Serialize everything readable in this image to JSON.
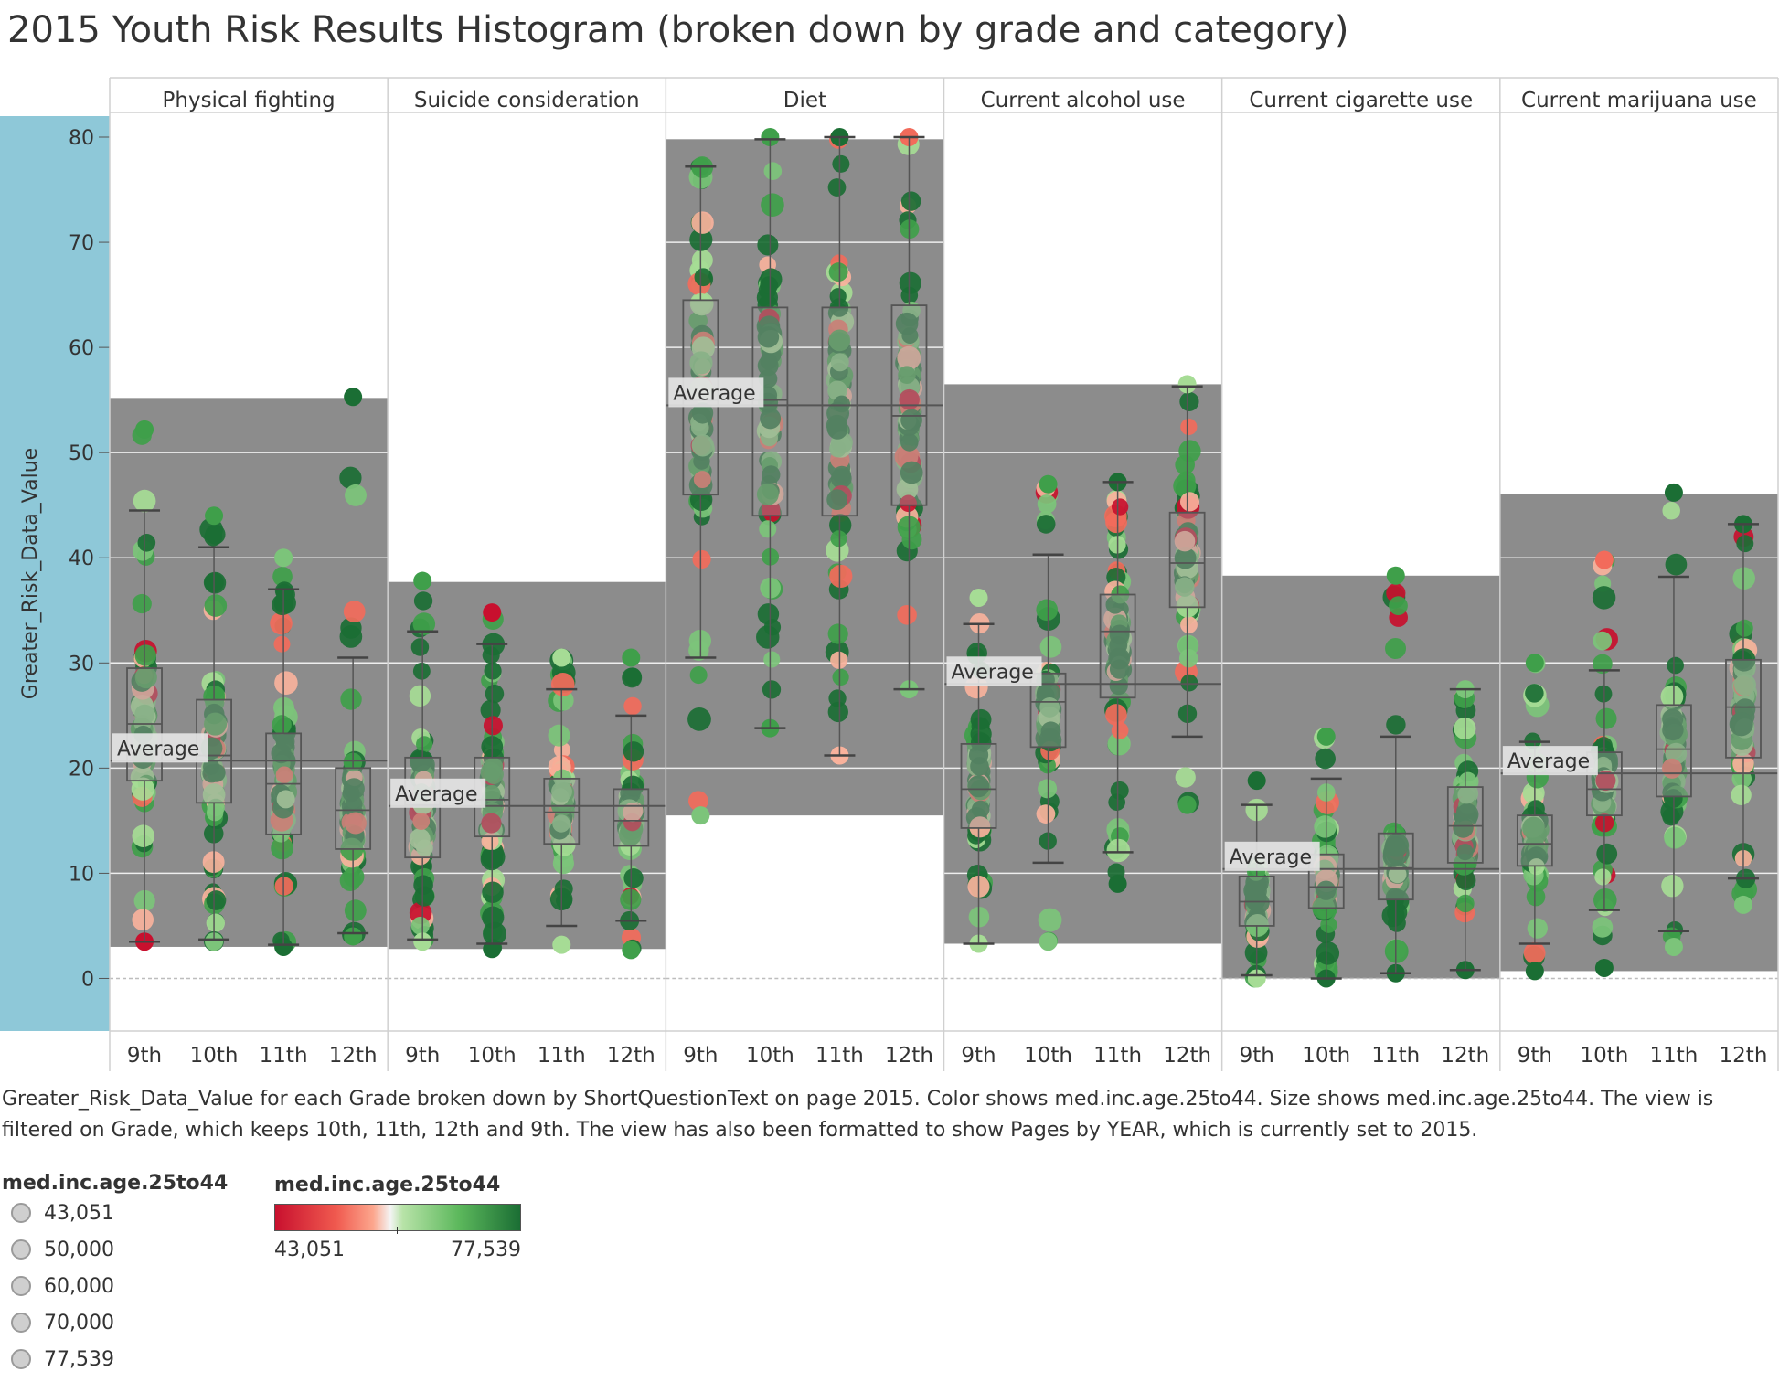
{
  "title": "2015 Youth Risk Results Histogram (broken down by grade and category)",
  "caption": "Greater_Risk_Data_Value for each Grade broken down by ShortQuestionText on page 2015.  Color shows med.inc.age.25to44.  Size shows med.inc.age.25to44. The view is filtered on Grade, which keeps 10th, 11th, 12th and 9th. The view has also been formatted to show Pages by YEAR, which is currently set to 2015.",
  "size_legend": {
    "title": "med.inc.age.25to44",
    "items": [
      "43,051",
      "50,000",
      "60,000",
      "70,000",
      "77,539"
    ]
  },
  "color_legend": {
    "title": "med.inc.age.25to44",
    "min_label": "43,051",
    "max_label": "77,539"
  },
  "chart_data": {
    "type": "box-plot with jittered points and reference bands",
    "ylabel": "Greater_Risk_Data_Value",
    "ylim": [
      -5,
      82
    ],
    "yticks": [
      0,
      10,
      20,
      30,
      40,
      50,
      60,
      70,
      80
    ],
    "grid": true,
    "average_label": "Average",
    "grades": [
      "9th",
      "10th",
      "11th",
      "12th"
    ],
    "colors": {
      "low": "#c8102e",
      "mid_low": "#f26b5b",
      "mid": "#a6dc95",
      "high": "#1b6e34",
      "band": "#8c8c8c",
      "axis_band": "#8ec8d8"
    },
    "panels": [
      {
        "name": "Physical fighting",
        "band": [
          3.0,
          55.2
        ],
        "average": 20.7,
        "boxes": [
          {
            "grade": "9th",
            "min": 3.5,
            "q1": 18.8,
            "median": 24.2,
            "q3": 29.5,
            "max": 44.5,
            "range": [
              3.5,
              52.2
            ]
          },
          {
            "grade": "10th",
            "min": 3.7,
            "q1": 16.7,
            "median": 21.2,
            "q3": 26.5,
            "max": 41.0,
            "range": [
              3.5,
              44.0
            ]
          },
          {
            "grade": "11th",
            "min": 3.2,
            "q1": 13.7,
            "median": 18.5,
            "q3": 23.3,
            "max": 37.0,
            "range": [
              3.0,
              40.0
            ]
          },
          {
            "grade": "12th",
            "min": 4.3,
            "q1": 12.3,
            "median": 16.0,
            "q3": 20.0,
            "max": 30.5,
            "range": [
              4.0,
              55.3
            ]
          }
        ]
      },
      {
        "name": "Suicide consideration",
        "band": [
          2.8,
          37.7
        ],
        "average": 16.4,
        "boxes": [
          {
            "grade": "9th",
            "min": 3.7,
            "q1": 11.5,
            "median": 16.5,
            "q3": 21.0,
            "max": 33.0,
            "range": [
              3.5,
              37.8
            ]
          },
          {
            "grade": "10th",
            "min": 3.3,
            "q1": 13.5,
            "median": 17.0,
            "q3": 21.0,
            "max": 31.8,
            "range": [
              2.8,
              34.8
            ]
          },
          {
            "grade": "11th",
            "min": 5.0,
            "q1": 12.8,
            "median": 15.8,
            "q3": 19.0,
            "max": 27.5,
            "range": [
              3.2,
              30.5
            ]
          },
          {
            "grade": "12th",
            "min": 5.5,
            "q1": 12.6,
            "median": 15.0,
            "q3": 18.0,
            "max": 25.0,
            "range": [
              2.7,
              30.5
            ]
          }
        ]
      },
      {
        "name": "Diet",
        "band": [
          15.5,
          79.8
        ],
        "average": 54.5,
        "boxes": [
          {
            "grade": "9th",
            "min": 30.5,
            "q1": 46.0,
            "median": 55.0,
            "q3": 64.5,
            "max": 77.2,
            "range": [
              15.5,
              77.2
            ]
          },
          {
            "grade": "10th",
            "min": 23.8,
            "q1": 44.0,
            "median": 55.0,
            "q3": 63.8,
            "max": 79.8,
            "range": [
              23.8,
              80.0
            ]
          },
          {
            "grade": "11th",
            "min": 21.2,
            "q1": 44.0,
            "median": 54.5,
            "q3": 63.8,
            "max": 80.0,
            "range": [
              21.2,
              80.0
            ]
          },
          {
            "grade": "12th",
            "min": 27.5,
            "q1": 45.0,
            "median": 53.5,
            "q3": 64.0,
            "max": 80.0,
            "range": [
              27.5,
              80.0
            ]
          }
        ]
      },
      {
        "name": "Current alcohol use",
        "band": [
          3.3,
          56.5
        ],
        "average": 28.0,
        "boxes": [
          {
            "grade": "9th",
            "min": 3.3,
            "q1": 14.3,
            "median": 18.0,
            "q3": 22.3,
            "max": 33.7,
            "range": [
              3.3,
              36.2
            ]
          },
          {
            "grade": "10th",
            "min": 11.0,
            "q1": 22.0,
            "median": 26.3,
            "q3": 29.0,
            "max": 40.3,
            "range": [
              3.5,
              47.0
            ]
          },
          {
            "grade": "11th",
            "min": 12.0,
            "q1": 26.7,
            "median": 33.0,
            "q3": 36.5,
            "max": 47.2,
            "range": [
              9.0,
              47.2
            ]
          },
          {
            "grade": "12th",
            "min": 23.0,
            "q1": 35.3,
            "median": 39.5,
            "q3": 44.3,
            "max": 56.3,
            "range": [
              16.5,
              56.5
            ]
          }
        ]
      },
      {
        "name": "Current cigarette use",
        "band": [
          0.0,
          38.3
        ],
        "average": 10.4,
        "boxes": [
          {
            "grade": "9th",
            "min": 0.3,
            "q1": 5.0,
            "median": 7.3,
            "q3": 9.7,
            "max": 16.5,
            "range": [
              0.0,
              18.8
            ]
          },
          {
            "grade": "10th",
            "min": 0.0,
            "q1": 6.7,
            "median": 8.7,
            "q3": 11.8,
            "max": 19.0,
            "range": [
              0.0,
              23.0
            ]
          },
          {
            "grade": "11th",
            "min": 0.5,
            "q1": 7.5,
            "median": 10.5,
            "q3": 13.8,
            "max": 23.0,
            "range": [
              0.5,
              38.3
            ]
          },
          {
            "grade": "12th",
            "min": 0.8,
            "q1": 11.0,
            "median": 14.5,
            "q3": 18.2,
            "max": 27.5,
            "range": [
              0.8,
              27.5
            ]
          }
        ]
      },
      {
        "name": "Current marijuana use",
        "band": [
          0.7,
          46.1
        ],
        "average": 19.5,
        "boxes": [
          {
            "grade": "9th",
            "min": 3.3,
            "q1": 10.7,
            "median": 12.8,
            "q3": 15.5,
            "max": 22.5,
            "range": [
              0.7,
              30.0
            ]
          },
          {
            "grade": "10th",
            "min": 6.5,
            "q1": 15.5,
            "median": 18.0,
            "q3": 21.5,
            "max": 29.3,
            "range": [
              1.0,
              39.8
            ]
          },
          {
            "grade": "11th",
            "min": 4.5,
            "q1": 17.3,
            "median": 21.8,
            "q3": 26.0,
            "max": 38.2,
            "range": [
              3.0,
              46.2
            ]
          },
          {
            "grade": "12th",
            "min": 9.5,
            "q1": 21.0,
            "median": 25.8,
            "q3": 30.3,
            "max": 43.2,
            "range": [
              7.0,
              43.2
            ]
          }
        ]
      }
    ]
  }
}
